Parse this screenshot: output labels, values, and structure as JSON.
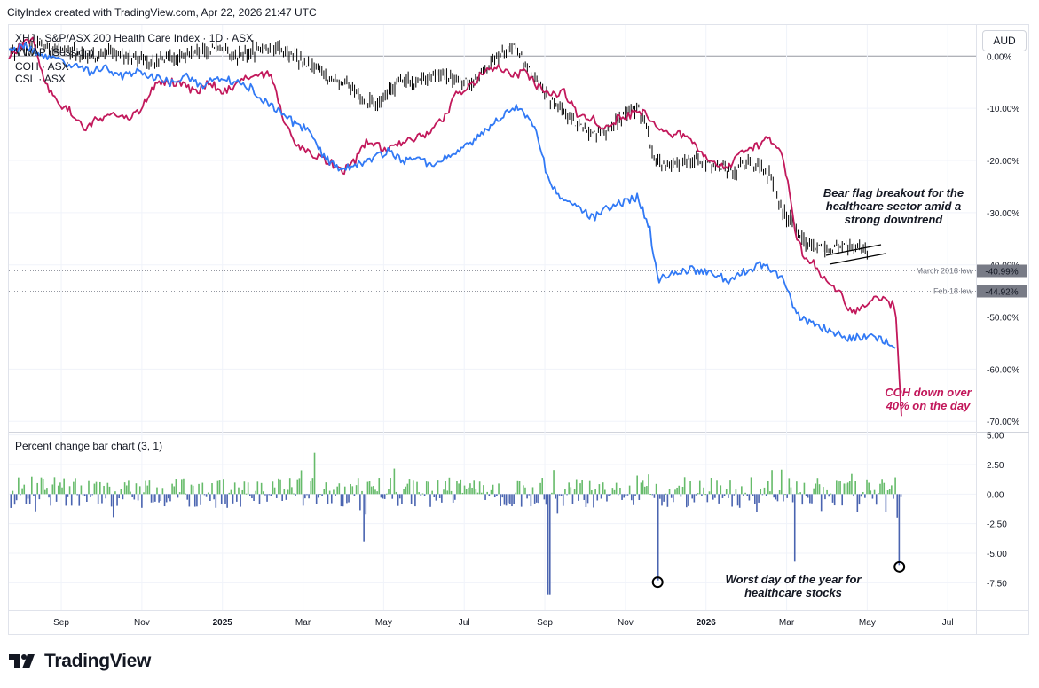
{
  "header": {
    "attribution": "CityIndex created with TradingView.com, Apr 22, 2026 21:47 UTC"
  },
  "legend": {
    "main": "XHJ · S&P/ASX 200 Health Care Index · 1D · ASX",
    "vwap": "VWAP (Session)",
    "coh": "COH · ASX",
    "csl": "CSL · ASX"
  },
  "currency": "AUD",
  "oscillator_title": "Percent change bar chart (3, 1)",
  "annotations": {
    "bear_flag": [
      "Bear flag breakout for the",
      "healthcare sector amid a",
      "strong downtrend"
    ],
    "coh_drop": [
      "COH down over",
      "40% on the day"
    ],
    "worst_day": [
      "Worst day of the year for",
      "healthcare stocks"
    ]
  },
  "levels": [
    {
      "name": "March 2018 low",
      "value": "-40.99%",
      "pct": -40.99
    },
    {
      "name": "Feb 18 low",
      "value": "-44.92%",
      "pct": -44.92
    }
  ],
  "brand": "TradingView",
  "colors": {
    "xhj": "#000000",
    "coh": "#c2185b",
    "csl": "#3179f5",
    "up": "#66bb6a",
    "down": "#4a64b0",
    "level_box": "#787b86"
  },
  "chart_data": {
    "type": "line",
    "title": "XHJ · S&P/ASX 200 Health Care Index · 1D · ASX",
    "y_axis_ticks": [
      "0.00%",
      "-10.00%",
      "-20.00%",
      "-30.00%",
      "-40.00%",
      "-50.00%",
      "-60.00%",
      "-70.00%"
    ],
    "y_tick_values": [
      0,
      -10,
      -20,
      -30,
      -40,
      -50,
      -60,
      -70
    ],
    "ylim": [
      -72,
      6
    ],
    "x_axis_ticks": [
      "Sep",
      "Nov",
      "2025",
      "Mar",
      "May",
      "Jul",
      "Sep",
      "Nov",
      "2026",
      "Mar",
      "May",
      "Jul"
    ],
    "x_tick_months": [
      8,
      10,
      12,
      14,
      16,
      18,
      20,
      22,
      24,
      26,
      28,
      30
    ],
    "x_unit": "months since Jan 2024",
    "xlim": [
      6.7,
      30.7
    ],
    "series": [
      {
        "name": "XHJ",
        "color": "#000000",
        "style": "bars",
        "points": [
          [
            6.7,
            1
          ],
          [
            7.2,
            2
          ],
          [
            7.7,
            2
          ],
          [
            8.2,
            1
          ],
          [
            8.7,
            0
          ],
          [
            9.2,
            1
          ],
          [
            9.7,
            0
          ],
          [
            10.3,
            -1
          ],
          [
            10.8,
            -0.5
          ],
          [
            11.3,
            1
          ],
          [
            11.8,
            1
          ],
          [
            12.3,
            0
          ],
          [
            12.8,
            1
          ],
          [
            13.3,
            2
          ],
          [
            13.8,
            0
          ],
          [
            14.2,
            -2
          ],
          [
            14.6,
            -4
          ],
          [
            15.0,
            -5
          ],
          [
            15.5,
            -8
          ],
          [
            15.8,
            -10
          ],
          [
            16.1,
            -7
          ],
          [
            16.4,
            -5
          ],
          [
            16.8,
            -5
          ],
          [
            17.3,
            -4
          ],
          [
            17.8,
            -4
          ],
          [
            18.2,
            -5
          ],
          [
            18.6,
            -2
          ],
          [
            19.0,
            1
          ],
          [
            19.3,
            2
          ],
          [
            19.5,
            -1
          ],
          [
            19.7,
            -4
          ],
          [
            20.0,
            -7
          ],
          [
            20.4,
            -10
          ],
          [
            20.8,
            -13
          ],
          [
            21.2,
            -15
          ],
          [
            21.6,
            -14
          ],
          [
            22.0,
            -11
          ],
          [
            22.3,
            -10
          ],
          [
            22.5,
            -13
          ],
          [
            22.7,
            -20
          ],
          [
            23.2,
            -21
          ],
          [
            23.7,
            -20
          ],
          [
            24.2,
            -21
          ],
          [
            24.7,
            -22
          ],
          [
            25.0,
            -21
          ],
          [
            25.3,
            -21
          ],
          [
            25.6,
            -23
          ],
          [
            25.9,
            -30
          ],
          [
            26.2,
            -32
          ],
          [
            26.5,
            -36
          ],
          [
            26.8,
            -37
          ],
          [
            27.2,
            -37
          ],
          [
            27.6,
            -36
          ],
          [
            28.0,
            -38
          ]
        ]
      },
      {
        "name": "COH",
        "color": "#c2185b",
        "style": "line",
        "points": [
          [
            6.7,
            0
          ],
          [
            7.0,
            2
          ],
          [
            7.3,
            3
          ],
          [
            7.6,
            -5
          ],
          [
            7.9,
            -9
          ],
          [
            8.3,
            -11
          ],
          [
            8.6,
            -14
          ],
          [
            8.9,
            -12
          ],
          [
            9.3,
            -11
          ],
          [
            9.6,
            -12
          ],
          [
            10.0,
            -10
          ],
          [
            10.3,
            -6
          ],
          [
            10.6,
            -5
          ],
          [
            11.0,
            -5
          ],
          [
            11.3,
            -7
          ],
          [
            11.7,
            -5
          ],
          [
            12.0,
            -7
          ],
          [
            12.3,
            -6
          ],
          [
            12.6,
            -4
          ],
          [
            12.9,
            -4
          ],
          [
            13.2,
            -3
          ],
          [
            13.5,
            -12
          ],
          [
            13.8,
            -17
          ],
          [
            14.2,
            -19
          ],
          [
            14.6,
            -20
          ],
          [
            15.0,
            -22
          ],
          [
            15.3,
            -20
          ],
          [
            15.6,
            -16
          ],
          [
            16.0,
            -18
          ],
          [
            16.3,
            -17
          ],
          [
            16.7,
            -16
          ],
          [
            17.1,
            -15
          ],
          [
            17.5,
            -12
          ],
          [
            17.8,
            -7
          ],
          [
            18.1,
            -6
          ],
          [
            18.5,
            -3
          ],
          [
            18.8,
            -2
          ],
          [
            19.2,
            -4
          ],
          [
            19.5,
            -3
          ],
          [
            19.8,
            -6
          ],
          [
            20.1,
            -7
          ],
          [
            20.5,
            -7
          ],
          [
            20.8,
            -11
          ],
          [
            21.2,
            -12
          ],
          [
            21.5,
            -14
          ],
          [
            21.8,
            -12
          ],
          [
            22.2,
            -11
          ],
          [
            22.5,
            -11
          ],
          [
            22.8,
            -14
          ],
          [
            23.2,
            -15
          ],
          [
            23.5,
            -15
          ],
          [
            23.8,
            -18
          ],
          [
            24.2,
            -20
          ],
          [
            24.5,
            -22
          ],
          [
            24.8,
            -19
          ],
          [
            25.1,
            -18
          ],
          [
            25.5,
            -16
          ],
          [
            25.8,
            -17
          ],
          [
            26.0,
            -23
          ],
          [
            26.2,
            -33
          ],
          [
            26.4,
            -38
          ],
          [
            26.7,
            -40
          ],
          [
            27.0,
            -43
          ],
          [
            27.3,
            -45
          ],
          [
            27.6,
            -49
          ],
          [
            27.9,
            -48
          ],
          [
            28.2,
            -46
          ],
          [
            28.5,
            -47
          ],
          [
            28.7,
            -48
          ],
          [
            28.85,
            -69
          ]
        ]
      },
      {
        "name": "CSL",
        "color": "#3179f5",
        "style": "line",
        "points": [
          [
            6.7,
            1
          ],
          [
            7.1,
            2
          ],
          [
            7.5,
            0
          ],
          [
            7.9,
            -1
          ],
          [
            8.3,
            -2
          ],
          [
            8.7,
            -3
          ],
          [
            9.1,
            -2
          ],
          [
            9.5,
            -4
          ],
          [
            9.9,
            -3
          ],
          [
            10.3,
            -4
          ],
          [
            10.7,
            -5
          ],
          [
            11.1,
            -4
          ],
          [
            11.5,
            -6
          ],
          [
            11.9,
            -4
          ],
          [
            12.3,
            -5
          ],
          [
            12.7,
            -6
          ],
          [
            13.1,
            -9
          ],
          [
            13.5,
            -11
          ],
          [
            13.8,
            -13
          ],
          [
            14.1,
            -14
          ],
          [
            14.5,
            -19
          ],
          [
            14.9,
            -22
          ],
          [
            15.3,
            -21
          ],
          [
            15.7,
            -20
          ],
          [
            16.1,
            -18
          ],
          [
            16.5,
            -20
          ],
          [
            16.9,
            -20
          ],
          [
            17.3,
            -21
          ],
          [
            17.6,
            -19
          ],
          [
            17.9,
            -18
          ],
          [
            18.3,
            -16
          ],
          [
            18.7,
            -13
          ],
          [
            19.0,
            -11
          ],
          [
            19.3,
            -10
          ],
          [
            19.6,
            -12
          ],
          [
            19.8,
            -15
          ],
          [
            20.1,
            -24
          ],
          [
            20.4,
            -27
          ],
          [
            20.8,
            -29
          ],
          [
            21.2,
            -31
          ],
          [
            21.6,
            -29
          ],
          [
            22.0,
            -28
          ],
          [
            22.3,
            -27
          ],
          [
            22.6,
            -33
          ],
          [
            22.8,
            -43
          ],
          [
            23.1,
            -42
          ],
          [
            23.5,
            -41
          ],
          [
            23.9,
            -41
          ],
          [
            24.2,
            -42
          ],
          [
            24.6,
            -43
          ],
          [
            25.0,
            -41
          ],
          [
            25.4,
            -40
          ],
          [
            25.7,
            -41
          ],
          [
            26.0,
            -44
          ],
          [
            26.2,
            -49
          ],
          [
            26.5,
            -51
          ],
          [
            26.9,
            -52
          ],
          [
            27.2,
            -53
          ],
          [
            27.5,
            -54
          ],
          [
            27.8,
            -54
          ],
          [
            28.2,
            -54
          ],
          [
            28.5,
            -55
          ],
          [
            28.7,
            -56
          ]
        ]
      }
    ],
    "oscillator": {
      "name": "Percent change bar chart (3, 1)",
      "type": "bar",
      "y_axis_ticks": [
        "5.00",
        "2.50",
        "0.00",
        "-2.50",
        "-5.00",
        "-7.50"
      ],
      "y_tick_values": [
        5,
        2.5,
        0,
        -2.5,
        -5,
        -7.5
      ],
      "ylim": [
        -9.8,
        5.2
      ],
      "notable": [
        {
          "x": 14.3,
          "value": 3.5
        },
        {
          "x": 15.5,
          "value": -4.0
        },
        {
          "x": 20.1,
          "value": -8.5
        },
        {
          "x": 22.8,
          "value": -7.3
        },
        {
          "x": 26.2,
          "value": -5.7
        },
        {
          "x": 28.8,
          "value": -6.0
        }
      ]
    }
  }
}
